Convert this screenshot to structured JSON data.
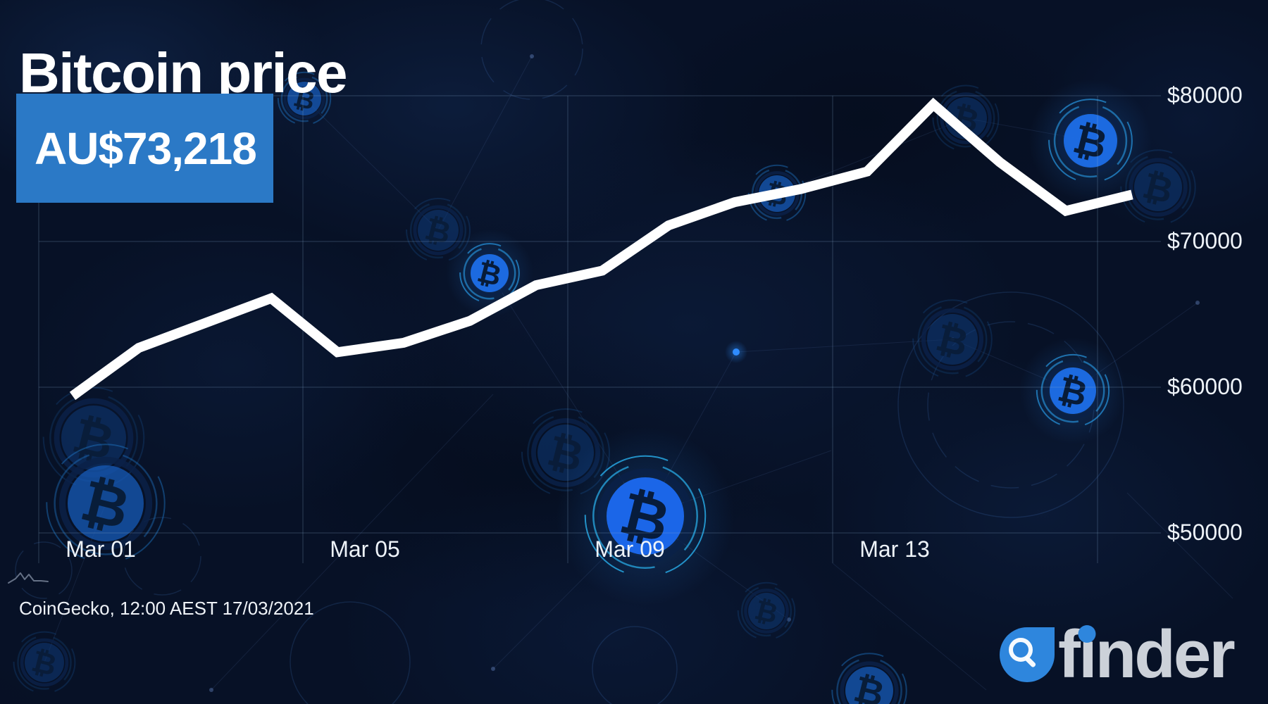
{
  "header": {
    "title": "Bitcoin price",
    "price_badge": "AU$73,218"
  },
  "chart_data": {
    "type": "line",
    "title": "Bitcoin price",
    "currency": "AUD",
    "x": [
      "Mar 01",
      "Mar 02",
      "Mar 03",
      "Mar 04",
      "Mar 05",
      "Mar 06",
      "Mar 07",
      "Mar 08",
      "Mar 09",
      "Mar 10",
      "Mar 11",
      "Mar 12",
      "Mar 13",
      "Mar 14",
      "Mar 15",
      "Mar 16",
      "Mar 17"
    ],
    "values": [
      59400,
      62700,
      64400,
      66100,
      62400,
      63050,
      64550,
      67000,
      68000,
      71100,
      72700,
      73600,
      74800,
      79400,
      75450,
      72100,
      73218
    ],
    "x_tick_labels": [
      "Mar 01",
      "Mar 05",
      "Mar 09",
      "Mar 13"
    ],
    "y_ticks": [
      80000,
      70000,
      60000,
      50000
    ],
    "y_tick_labels": [
      "$80000",
      "$70000",
      "$60000",
      "$50000"
    ],
    "ylim": [
      48000,
      81500
    ],
    "grid": true,
    "legend": false,
    "line_color": "#ffffff",
    "last_value_label": "AU$73,218"
  },
  "footer": {
    "source": "CoinGecko, 12:00 AEST 17/03/2021"
  },
  "brand": {
    "wordmark": "finder",
    "wordmark_f": "f",
    "wordmark_i_dotless": "ı",
    "wordmark_rest": "nder",
    "accent": "#2e86dd"
  },
  "colors": {
    "background": "#071126",
    "badge_blue": "#2b79c6",
    "grid_line": "#8fb4d9",
    "coin_blue": "#1e6ee8",
    "ring_cyan": "#27a6e0",
    "price_line": "#ffffff"
  },
  "icons": {
    "sparkline_icon": "mini mountain line chart",
    "magnifier_icon": "search magnifying glass",
    "bitcoin_icon": "₿"
  }
}
